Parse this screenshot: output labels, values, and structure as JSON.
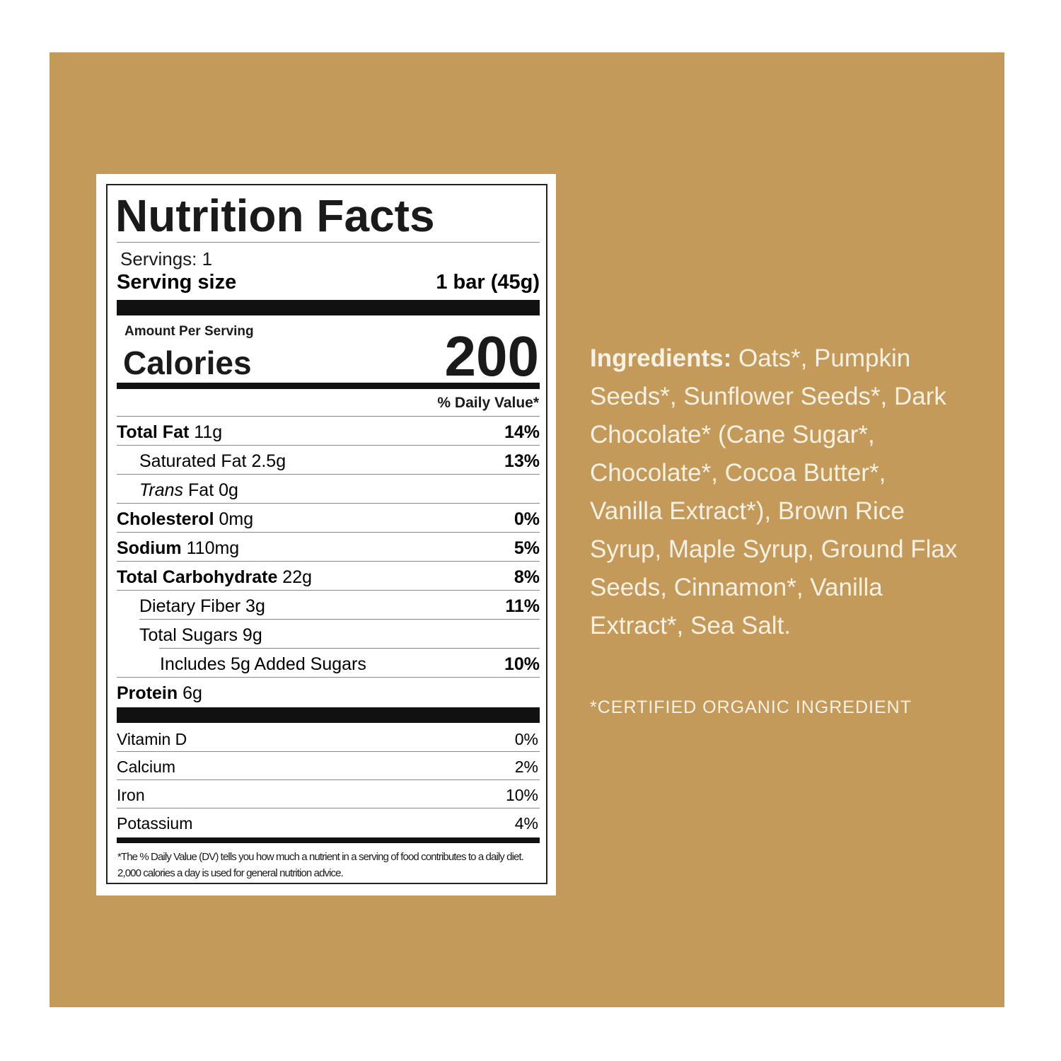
{
  "label": {
    "title": "Nutrition Facts",
    "servings": "Servings: 1",
    "serving_size_label": "Serving size",
    "serving_size_value": "1 bar (45g)",
    "amount_per_serving": "Amount Per Serving",
    "calories_label": "Calories",
    "calories_value": "200",
    "daily_value_header": "% Daily Value*",
    "rows": [
      {
        "name": "Total Fat",
        "amount": "11g",
        "dv": "14%"
      },
      {
        "name": "Saturated Fat",
        "amount": "2.5g",
        "dv": "13%"
      },
      {
        "name_italic": "Trans",
        "name": "Fat",
        "amount": "0g"
      },
      {
        "name": "Cholesterol",
        "amount": "0mg",
        "dv": "0%"
      },
      {
        "name": "Sodium",
        "amount": "110mg",
        "dv": "5%"
      },
      {
        "name": "Total Carbohydrate",
        "amount": "22g",
        "dv": "8%"
      },
      {
        "name": "Dietary Fiber",
        "amount": "3g",
        "dv": "11%"
      },
      {
        "name": "Total Sugars",
        "amount": "9g"
      },
      {
        "name": "Includes 5g Added Sugars",
        "dv": "10%"
      },
      {
        "name": "Protein",
        "amount": "6g"
      }
    ],
    "vitamins": [
      {
        "name": "Vitamin D",
        "dv": "0%"
      },
      {
        "name": "Calcium",
        "dv": "2%"
      },
      {
        "name": "Iron",
        "dv": "10%"
      },
      {
        "name": "Potassium",
        "dv": "4%"
      }
    ],
    "footnote": "*The % Daily Value (DV) tells you how much a nutrient in a serving of food contributes to a daily diet. 2,000 calories a day is used for general nutrition advice."
  },
  "ingredients": {
    "label": "Ingredients:",
    "text": "Oats*, Pumpkin Seeds*, Sunflower Seeds*, Dark Chocolate* (Cane Sugar*, Chocolate*, Cocoa Butter*, Vanilla Extract*), Brown Rice Syrup, Maple Syrup, Ground Flax Seeds, Cinnamon*, Vanilla Extract*, Sea Salt.",
    "note": "*CERTIFIED ORGANIC INGREDIENT"
  }
}
